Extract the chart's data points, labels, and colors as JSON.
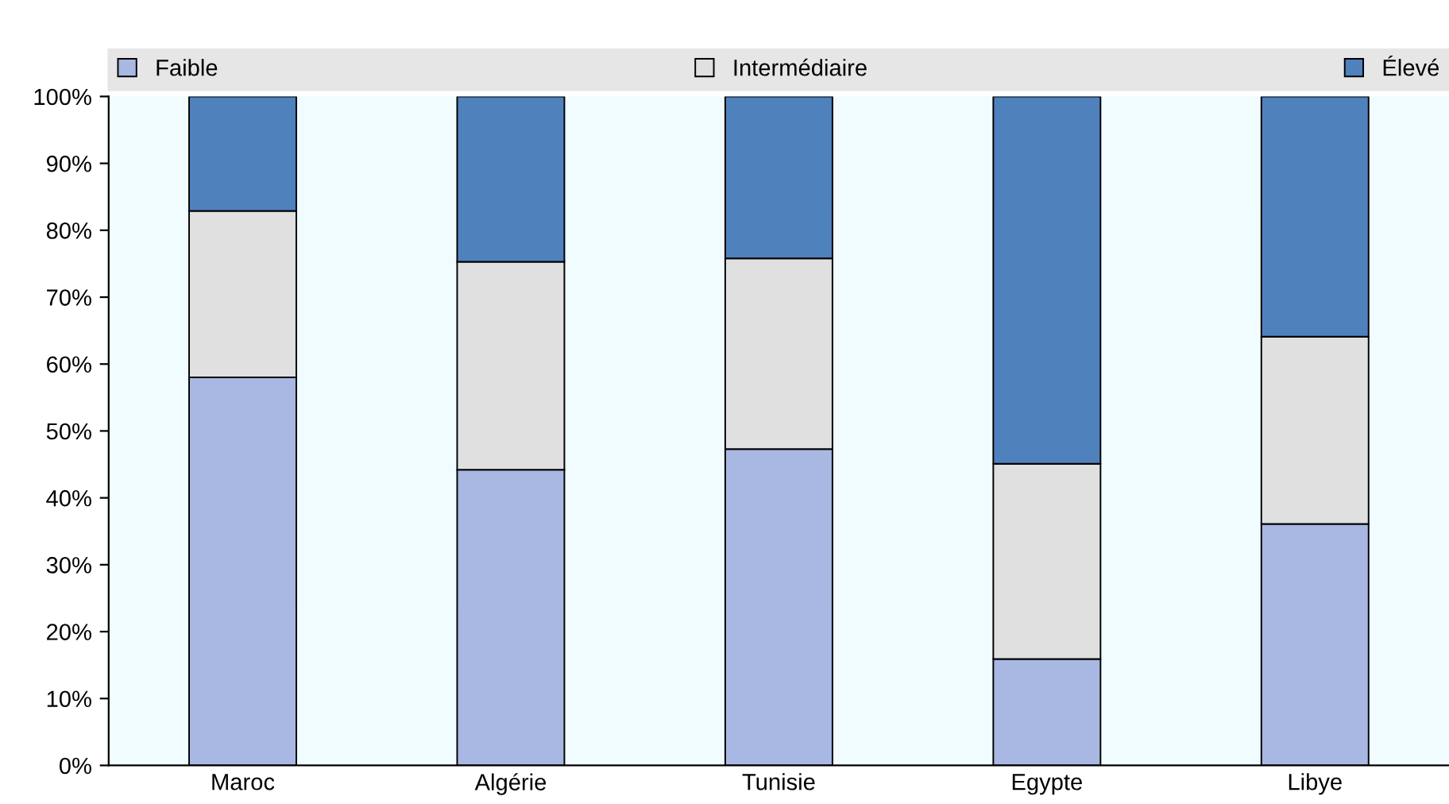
{
  "chart_data": {
    "type": "bar",
    "stacked": true,
    "categories": [
      "Maroc",
      "Algérie",
      "Tunisie",
      "Egypte",
      "Libye"
    ],
    "series": [
      {
        "name": "Faible",
        "color": "#a9b8e2",
        "values": [
          58.0,
          44.2,
          47.3,
          15.9,
          36.1
        ]
      },
      {
        "name": "Intermédiaire",
        "color": "#e0e0e0",
        "values": [
          24.9,
          31.1,
          28.5,
          29.2,
          28.0
        ]
      },
      {
        "name": "Élevé",
        "color": "#4f81bd",
        "values": [
          17.1,
          24.7,
          24.2,
          54.9,
          35.9
        ]
      }
    ],
    "ylim": [
      0,
      100
    ],
    "yticks": [
      {
        "value": 0,
        "label": "0%"
      },
      {
        "value": 10,
        "label": "10%"
      },
      {
        "value": 20,
        "label": "20%"
      },
      {
        "value": 30,
        "label": "30%"
      },
      {
        "value": 40,
        "label": "40%"
      },
      {
        "value": 50,
        "label": "50%"
      },
      {
        "value": 60,
        "label": "60%"
      },
      {
        "value": 70,
        "label": "70%"
      },
      {
        "value": 80,
        "label": "80%"
      },
      {
        "value": 90,
        "label": "90%"
      },
      {
        "value": 100,
        "label": "100%"
      }
    ],
    "grid": false,
    "legend": "top"
  }
}
